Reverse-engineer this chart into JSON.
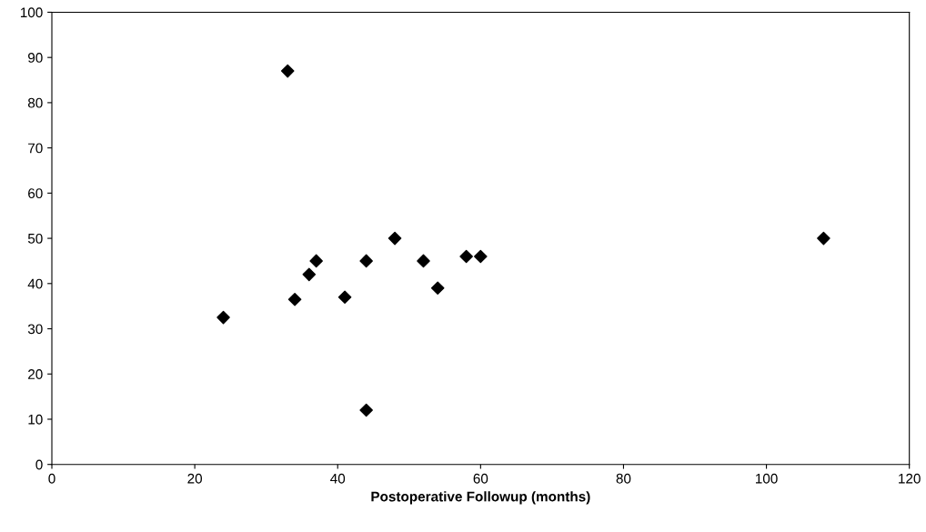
{
  "chart_data": {
    "type": "scatter",
    "xlabel": "Postoperative Followup (months)",
    "x": [
      24,
      33,
      34,
      36,
      37,
      41,
      44,
      44,
      48,
      52,
      54,
      58,
      60,
      108
    ],
    "values": [
      32.5,
      87,
      36.5,
      42,
      45,
      37,
      45,
      12,
      50,
      45,
      39,
      46,
      46,
      50
    ],
    "color": "#000000",
    "marker": "diamond",
    "xlim": [
      0,
      120
    ],
    "xticks": [
      0,
      20,
      40,
      60,
      80,
      100,
      120
    ],
    "ylim": [
      0,
      100
    ],
    "yticks": [
      0,
      10,
      20,
      30,
      40,
      50,
      60,
      70,
      80,
      90,
      100
    ],
    "grid": false
  }
}
